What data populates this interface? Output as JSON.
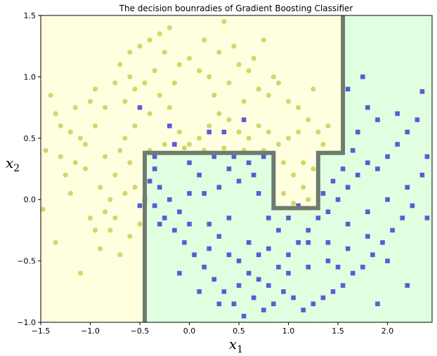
{
  "chart_data": {
    "type": "scatter",
    "title": "The decision bounradies of Gradient Boosting Classifier",
    "xlabel": {
      "main": "x",
      "sub": "1"
    },
    "ylabel": {
      "main": "x",
      "sub": "2"
    },
    "xlim": [
      -1.5,
      2.45
    ],
    "ylim": [
      -1.0,
      1.5
    ],
    "xticks": [
      -1.5,
      -1.0,
      -0.5,
      0.0,
      0.5,
      1.0,
      1.5,
      2.0
    ],
    "xtick_labels": [
      "−1.5",
      "−1.0",
      "−0.5",
      "0.0",
      "0.5",
      "1.0",
      "1.5",
      "2.0"
    ],
    "yticks": [
      -1.0,
      -0.5,
      0.0,
      0.5,
      1.0,
      1.5
    ],
    "ytick_labels": [
      "−1.0",
      "−0.5",
      "0.0",
      "0.5",
      "1.0",
      "1.5"
    ],
    "grid": false,
    "colors": {
      "region_class0": "#ffffe0",
      "region_class1": "#e0ffe0",
      "class0_marker": "#cfd96a",
      "class1_marker": "#5a5ad6",
      "boundary": "#6e7b6e"
    },
    "regions": [
      {
        "class": 1,
        "x": [
          -0.45,
          0.85
        ],
        "y": [
          -1.0,
          0.38
        ]
      },
      {
        "class": 1,
        "x": [
          0.85,
          1.3
        ],
        "y": [
          -1.0,
          -0.07
        ]
      },
      {
        "class": 1,
        "x": [
          1.3,
          1.55
        ],
        "y": [
          -1.0,
          0.38
        ]
      },
      {
        "class": 1,
        "x": [
          1.55,
          2.45
        ],
        "y": [
          -1.0,
          1.5
        ]
      }
    ],
    "boundary": [
      [
        -0.45,
        -1.0
      ],
      [
        -0.45,
        0.38
      ],
      [
        0.85,
        0.38
      ],
      [
        0.85,
        -0.07
      ],
      [
        1.3,
        -0.07
      ],
      [
        1.3,
        0.38
      ],
      [
        1.55,
        0.38
      ],
      [
        1.55,
        1.5
      ]
    ],
    "series": [
      {
        "class": 0,
        "marker": "circle",
        "points": [
          [
            -1.48,
            -0.08
          ],
          [
            -1.35,
            -0.35
          ],
          [
            -1.4,
            0.85
          ],
          [
            -1.35,
            0.7
          ],
          [
            -1.3,
            0.6
          ],
          [
            -1.2,
            0.55
          ],
          [
            -1.1,
            0.5
          ],
          [
            -1.05,
            0.45
          ],
          [
            -1.0,
            0.8
          ],
          [
            -0.95,
            0.9
          ],
          [
            -1.15,
            0.3
          ],
          [
            -1.25,
            0.2
          ],
          [
            -1.05,
            0.25
          ],
          [
            -0.95,
            0.6
          ],
          [
            -0.9,
            0.1
          ],
          [
            -0.85,
            -0.1
          ],
          [
            -0.8,
            0.0
          ],
          [
            -0.75,
            0.2
          ],
          [
            -0.7,
            0.4
          ],
          [
            -0.65,
            0.5
          ],
          [
            -0.6,
            0.3
          ],
          [
            -0.55,
            0.1
          ],
          [
            -0.5,
            -0.2
          ],
          [
            -0.6,
            -0.3
          ],
          [
            -0.7,
            -0.45
          ],
          [
            -0.8,
            -0.25
          ],
          [
            -0.9,
            -0.4
          ],
          [
            -1.1,
            -0.6
          ],
          [
            -1.0,
            -0.15
          ],
          [
            -1.2,
            0.05
          ],
          [
            -0.85,
            0.75
          ],
          [
            -0.75,
            0.95
          ],
          [
            -0.7,
            1.1
          ],
          [
            -0.6,
            1.2
          ],
          [
            -0.5,
            1.25
          ],
          [
            -0.4,
            1.3
          ],
          [
            -0.3,
            1.35
          ],
          [
            -0.2,
            1.4
          ],
          [
            -0.1,
            1.1
          ],
          [
            0.0,
            1.15
          ],
          [
            0.1,
            1.05
          ],
          [
            0.2,
            1.0
          ],
          [
            0.3,
            1.2
          ],
          [
            0.35,
            1.45
          ],
          [
            0.4,
            0.95
          ],
          [
            0.5,
            1.1
          ],
          [
            0.6,
            1.05
          ],
          [
            0.7,
            0.9
          ],
          [
            0.8,
            0.85
          ],
          [
            0.9,
            0.95
          ],
          [
            1.0,
            0.8
          ],
          [
            1.1,
            0.75
          ],
          [
            1.2,
            0.65
          ],
          [
            1.3,
            0.55
          ],
          [
            1.4,
            0.6
          ],
          [
            1.25,
            0.9
          ],
          [
            1.1,
            0.55
          ],
          [
            1.0,
            0.5
          ],
          [
            0.9,
            0.45
          ],
          [
            0.8,
            0.55
          ],
          [
            0.7,
            0.6
          ],
          [
            0.6,
            0.5
          ],
          [
            0.5,
            0.55
          ],
          [
            0.4,
            0.65
          ],
          [
            0.3,
            0.7
          ],
          [
            0.2,
            0.6
          ],
          [
            0.1,
            0.5
          ],
          [
            0.0,
            0.45
          ],
          [
            -0.1,
            0.55
          ],
          [
            -0.2,
            0.75
          ],
          [
            -0.3,
            0.85
          ],
          [
            -0.4,
            0.7
          ],
          [
            -0.45,
            0.95
          ],
          [
            -0.55,
            0.9
          ],
          [
            -0.65,
            0.8
          ],
          [
            -0.35,
            1.05
          ],
          [
            -0.25,
            1.2
          ],
          [
            0.15,
            1.3
          ],
          [
            0.45,
            1.25
          ],
          [
            0.65,
            1.15
          ],
          [
            0.85,
            1.0
          ],
          [
            0.95,
            0.3
          ],
          [
            1.05,
            0.2
          ],
          [
            1.15,
            0.1
          ],
          [
            1.2,
            0.0
          ],
          [
            1.25,
            0.25
          ],
          [
            0.95,
            0.05
          ],
          [
            1.05,
            -0.03
          ],
          [
            1.15,
            0.3
          ],
          [
            0.75,
            0.4
          ],
          [
            0.55,
            0.4
          ],
          [
            0.35,
            0.42
          ],
          [
            0.15,
            0.4
          ],
          [
            -0.05,
            0.42
          ],
          [
            -0.25,
            0.45
          ],
          [
            -0.4,
            0.4
          ],
          [
            -1.45,
            0.4
          ],
          [
            -1.3,
            0.35
          ],
          [
            -0.55,
            0.6
          ],
          [
            -0.15,
            0.95
          ],
          [
            0.25,
            0.85
          ],
          [
            0.55,
            0.8
          ],
          [
            0.75,
            1.3
          ],
          [
            -0.6,
            1.0
          ],
          [
            -1.15,
            0.75
          ],
          [
            -0.85,
            0.35
          ],
          [
            -0.95,
            -0.25
          ],
          [
            -0.65,
            0.05
          ],
          [
            -0.75,
            -0.15
          ],
          [
            1.35,
            0.45
          ]
        ]
      },
      {
        "class": 1,
        "marker": "square",
        "points": [
          [
            -0.5,
            -0.05
          ],
          [
            -0.4,
            0.15
          ],
          [
            -0.35,
            0.25
          ],
          [
            -0.3,
            0.1
          ],
          [
            -0.2,
            0.0
          ],
          [
            -0.1,
            -0.1
          ],
          [
            0.0,
            0.05
          ],
          [
            0.1,
            0.2
          ],
          [
            0.2,
            -0.2
          ],
          [
            0.3,
            -0.3
          ],
          [
            0.4,
            -0.45
          ],
          [
            0.5,
            -0.5
          ],
          [
            0.6,
            -0.6
          ],
          [
            0.7,
            -0.65
          ],
          [
            0.8,
            -0.7
          ],
          [
            0.9,
            -0.55
          ],
          [
            1.0,
            -0.45
          ],
          [
            1.1,
            -0.35
          ],
          [
            1.2,
            -0.25
          ],
          [
            1.3,
            -0.15
          ],
          [
            1.4,
            -0.1
          ],
          [
            1.5,
            0.0
          ],
          [
            1.6,
            0.1
          ],
          [
            1.7,
            0.2
          ],
          [
            1.8,
            0.3
          ],
          [
            1.9,
            0.25
          ],
          [
            2.0,
            0.35
          ],
          [
            2.1,
            0.45
          ],
          [
            2.2,
            0.55
          ],
          [
            2.3,
            0.65
          ],
          [
            2.35,
            0.2
          ],
          [
            2.25,
            -0.05
          ],
          [
            2.15,
            -0.15
          ],
          [
            2.05,
            -0.25
          ],
          [
            1.95,
            -0.35
          ],
          [
            1.85,
            -0.45
          ],
          [
            1.75,
            -0.55
          ],
          [
            1.65,
            -0.6
          ],
          [
            1.55,
            -0.7
          ],
          [
            1.45,
            -0.75
          ],
          [
            1.35,
            -0.8
          ],
          [
            1.25,
            -0.85
          ],
          [
            1.15,
            -0.9
          ],
          [
            1.05,
            -0.8
          ],
          [
            0.95,
            -0.75
          ],
          [
            0.85,
            -0.85
          ],
          [
            0.75,
            -0.9
          ],
          [
            0.65,
            -0.8
          ],
          [
            0.55,
            -0.95
          ],
          [
            0.45,
            -0.85
          ],
          [
            0.35,
            -0.75
          ],
          [
            0.25,
            -0.65
          ],
          [
            0.15,
            -0.55
          ],
          [
            0.05,
            -0.45
          ],
          [
            -0.05,
            -0.35
          ],
          [
            -0.15,
            -0.25
          ],
          [
            -0.25,
            -0.15
          ],
          [
            -0.35,
            -0.05
          ],
          [
            0.3,
            0.1
          ],
          [
            0.4,
            0.25
          ],
          [
            0.5,
            0.15
          ],
          [
            0.6,
            0.3
          ],
          [
            0.7,
            0.05
          ],
          [
            0.8,
            -0.15
          ],
          [
            0.9,
            -0.25
          ],
          [
            1.0,
            -0.15
          ],
          [
            1.1,
            -0.05
          ],
          [
            1.2,
            -0.35
          ],
          [
            1.4,
            -0.35
          ],
          [
            1.6,
            -0.2
          ],
          [
            1.8,
            -0.1
          ],
          [
            2.0,
            0.0
          ],
          [
            2.2,
            0.1
          ],
          [
            2.4,
            0.35
          ],
          [
            1.7,
            0.55
          ],
          [
            1.9,
            0.65
          ],
          [
            2.1,
            0.7
          ],
          [
            1.8,
            0.75
          ],
          [
            1.6,
            0.9
          ],
          [
            1.75,
            1.0
          ],
          [
            2.35,
            0.88
          ],
          [
            1.65,
            0.4
          ],
          [
            1.55,
            0.25
          ],
          [
            1.45,
            0.15
          ],
          [
            1.35,
            0.05
          ],
          [
            0.25,
            0.35
          ],
          [
            0.45,
            0.35
          ],
          [
            0.65,
            0.2
          ],
          [
            0.75,
            0.35
          ],
          [
            -0.45,
            0.0
          ],
          [
            -0.3,
            -0.2
          ],
          [
            0.0,
            -0.2
          ],
          [
            0.2,
            -0.4
          ],
          [
            0.4,
            -0.15
          ],
          [
            0.6,
            -0.35
          ],
          [
            0.8,
            -0.4
          ],
          [
            1.0,
            -0.6
          ],
          [
            1.2,
            -0.55
          ],
          [
            1.4,
            -0.5
          ],
          [
            1.6,
            -0.4
          ],
          [
            1.8,
            -0.3
          ],
          [
            2.0,
            -0.5
          ],
          [
            2.2,
            -0.7
          ],
          [
            1.9,
            -0.85
          ],
          [
            1.5,
            -0.55
          ],
          [
            0.3,
            -0.85
          ],
          [
            0.1,
            -0.75
          ],
          [
            -0.1,
            -0.6
          ],
          [
            0.5,
            -0.7
          ],
          [
            0.7,
            -0.45
          ],
          [
            -0.2,
            0.6
          ],
          [
            -0.35,
            0.35
          ],
          [
            0.35,
            0.55
          ],
          [
            0.55,
            0.65
          ],
          [
            -0.5,
            0.75
          ],
          [
            0.2,
            0.55
          ],
          [
            -0.15,
            0.45
          ],
          [
            0.0,
            0.3
          ],
          [
            0.15,
            0.05
          ],
          [
            2.4,
            -0.15
          ]
        ]
      }
    ]
  }
}
